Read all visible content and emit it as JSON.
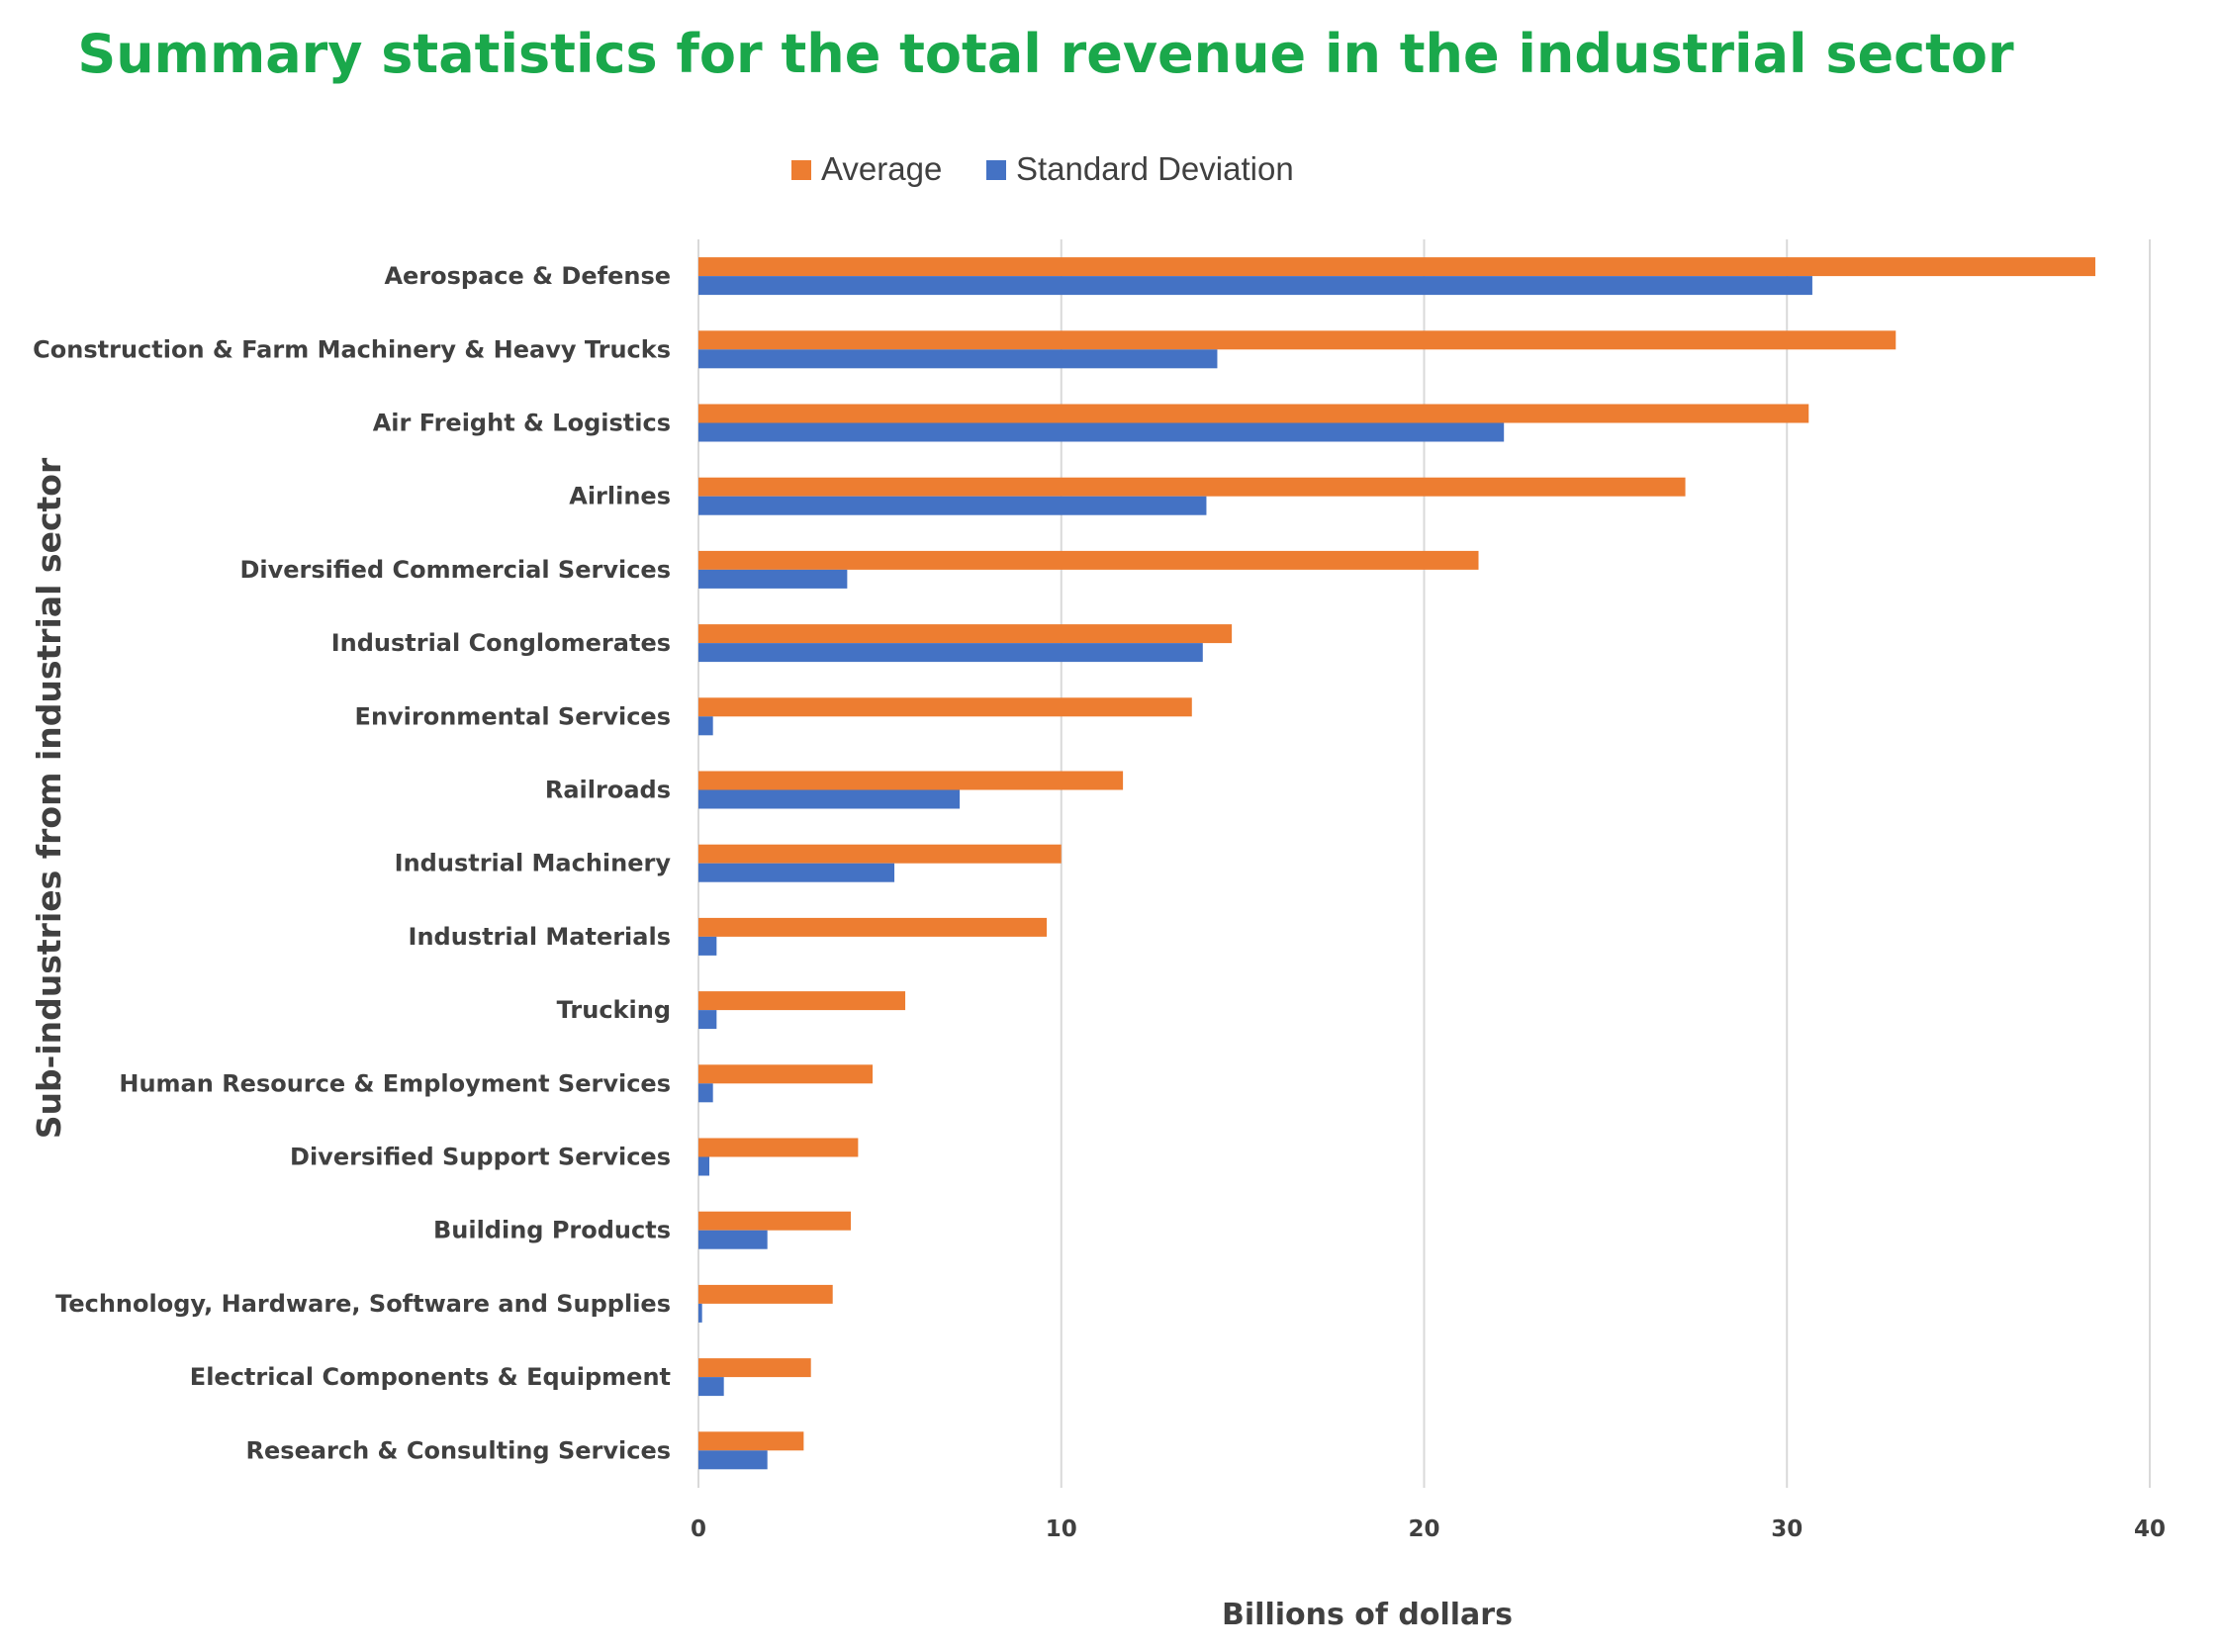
{
  "colors": {
    "title": "#1aa84b",
    "average": "#ed7d31",
    "std": "#4472c4",
    "text": "#404040",
    "grid": "#d9d9d9",
    "background": "#ffffff"
  },
  "chart_data": {
    "type": "bar",
    "orientation": "horizontal",
    "title": "Summary statistics for the total revenue in the industrial sector",
    "xlabel": "Billions of dollars",
    "ylabel": "Sub-industries  from industrial sector",
    "xlim": [
      0,
      40
    ],
    "xticks": [
      0,
      10,
      20,
      30,
      40
    ],
    "grid": true,
    "legend_position": "top",
    "categories": [
      "Aerospace & Defense",
      "Construction & Farm Machinery & Heavy Trucks",
      "Air Freight & Logistics",
      "Airlines",
      "Diversified Commercial Services",
      "Industrial Conglomerates",
      "Environmental Services",
      "Railroads",
      "Industrial Machinery",
      "Industrial Materials",
      "Trucking",
      "Human Resource & Employment Services",
      "Diversified Support Services",
      "Building Products",
      "Technology, Hardware, Software and Supplies",
      "Electrical Components & Equipment",
      "Research & Consulting Services"
    ],
    "series": [
      {
        "name": "Average",
        "values": [
          38.5,
          33.0,
          30.6,
          27.2,
          21.5,
          14.7,
          13.6,
          11.7,
          10.0,
          9.6,
          5.7,
          4.8,
          4.4,
          4.2,
          3.7,
          3.1,
          2.9
        ]
      },
      {
        "name": "Standard Deviation",
        "values": [
          30.7,
          14.3,
          22.2,
          14.0,
          4.1,
          13.9,
          0.4,
          7.2,
          5.4,
          0.5,
          0.5,
          0.4,
          0.3,
          1.9,
          0.1,
          0.7,
          1.9
        ]
      }
    ]
  }
}
